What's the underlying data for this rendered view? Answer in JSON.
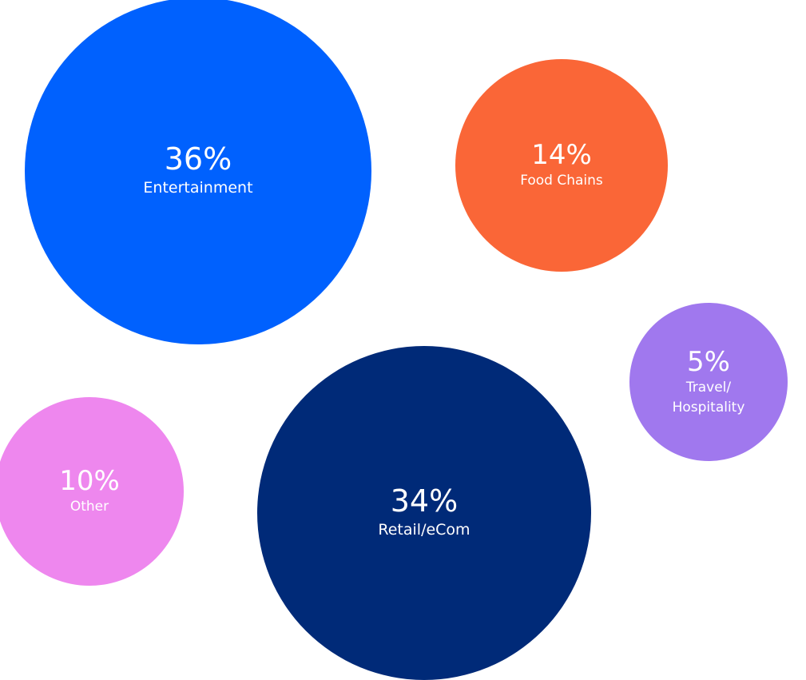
{
  "chart_data": {
    "type": "bubble",
    "categories": [
      "Entertainment",
      "Food Chains",
      "Travel/ Hospitality",
      "Other",
      "Retail/eCom"
    ],
    "values": [
      36,
      14,
      5,
      10,
      34
    ],
    "value_labels": [
      "36%",
      "14%",
      "5%",
      "10%",
      "34%"
    ],
    "colors": [
      "#0061fe",
      "#fa6637",
      "#a078ee",
      "#ee87ee",
      "#002a78"
    ]
  }
}
